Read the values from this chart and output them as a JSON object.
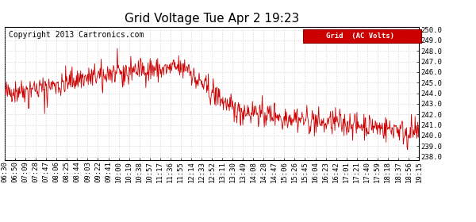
{
  "title": "Grid Voltage Tue Apr 2 19:23",
  "copyright": "Copyright 2013 Cartronics.com",
  "legend_label": "Grid  (AC Volts)",
  "legend_bg": "#cc0000",
  "legend_fg": "#ffffff",
  "line_color": "#cc0000",
  "bg_color": "#ffffff",
  "plot_bg": "#ffffff",
  "grid_color": "#bbbbbb",
  "ylim": [
    237.7,
    250.3
  ],
  "yticks": [
    238.0,
    239.0,
    240.0,
    241.0,
    242.0,
    243.0,
    244.0,
    245.0,
    246.0,
    247.0,
    248.0,
    249.0,
    250.0
  ],
  "xtick_labels": [
    "06:30",
    "06:50",
    "07:09",
    "07:28",
    "07:47",
    "08:06",
    "08:25",
    "08:44",
    "09:03",
    "09:22",
    "09:41",
    "10:00",
    "10:19",
    "10:38",
    "10:57",
    "11:17",
    "11:36",
    "11:55",
    "12:14",
    "12:33",
    "12:52",
    "13:11",
    "13:30",
    "13:49",
    "14:08",
    "14:28",
    "14:47",
    "15:06",
    "15:26",
    "15:45",
    "16:04",
    "16:23",
    "16:42",
    "17:01",
    "17:21",
    "17:40",
    "17:59",
    "18:18",
    "18:37",
    "18:56",
    "19:15"
  ],
  "title_fontsize": 11,
  "tick_fontsize": 6.5,
  "copyright_fontsize": 7
}
